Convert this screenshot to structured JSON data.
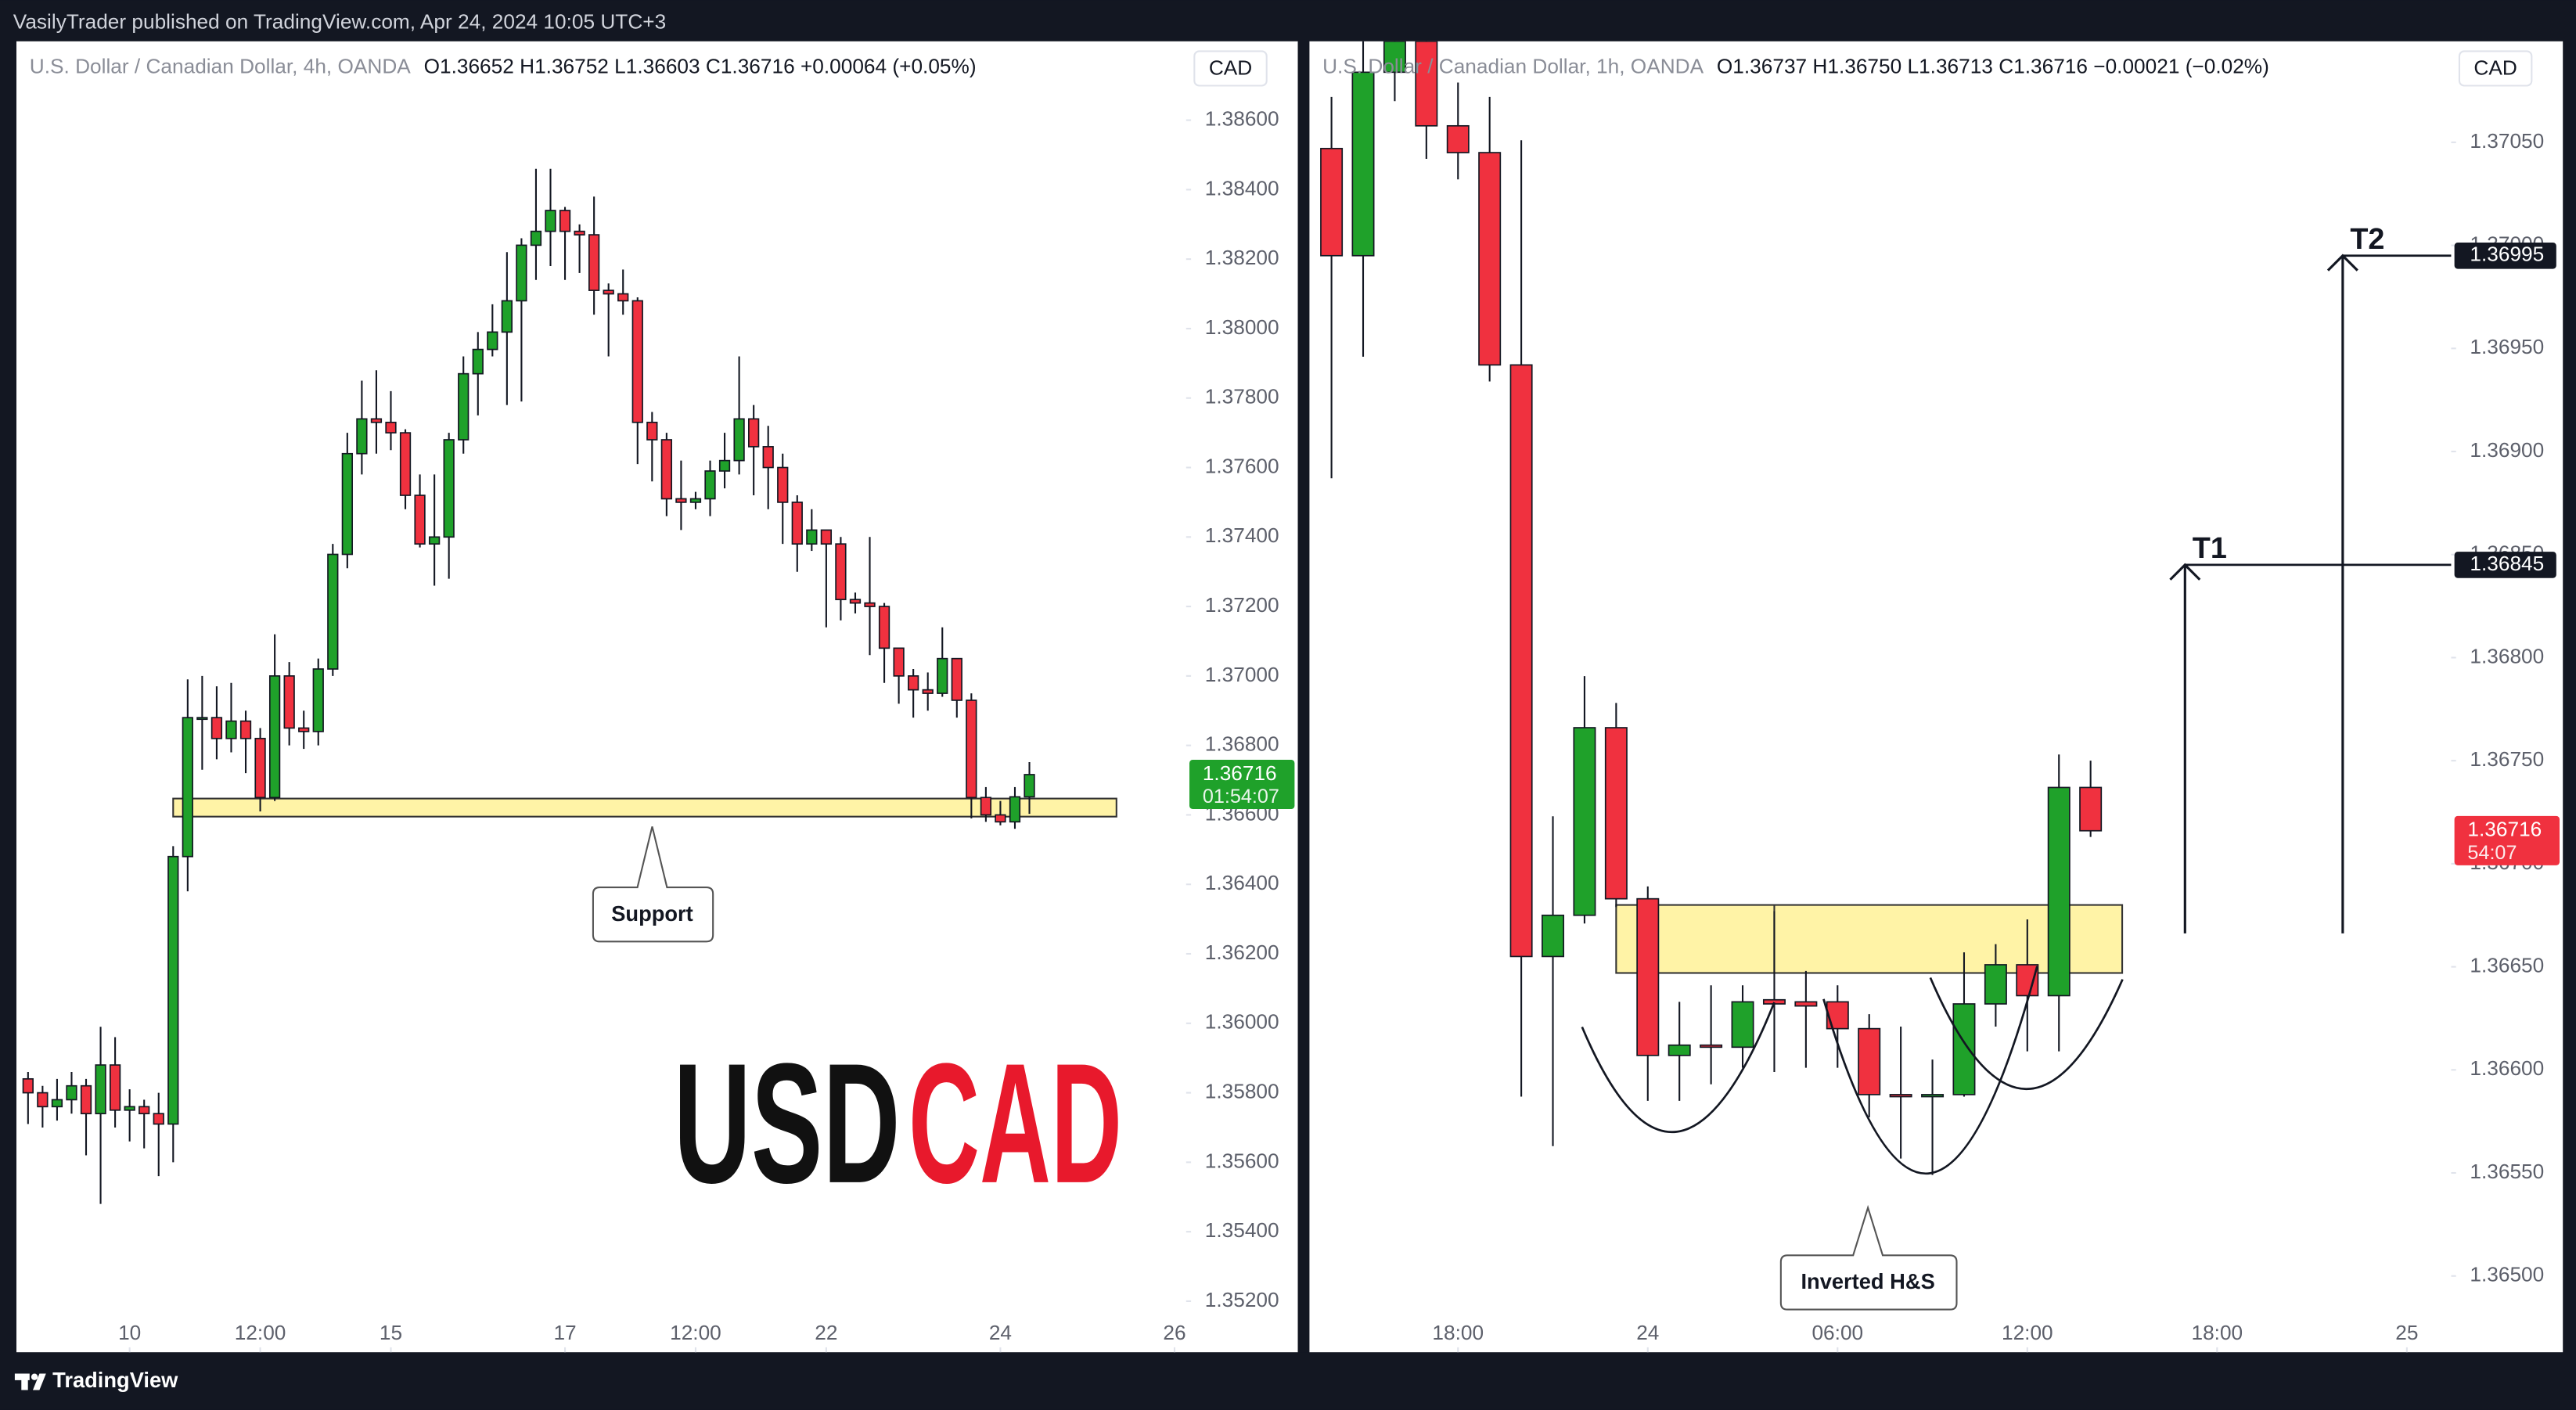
{
  "header": {
    "text": "VasilyTrader published on TradingView.com, Apr 24, 2024 10:05 UTC+3"
  },
  "footer": {
    "text": "TradingView"
  },
  "watermark": [
    "USD",
    "CAD"
  ],
  "chart_data": [
    {
      "type": "candlestick",
      "legend": {
        "name": "U.S. Dollar / Canadian Dollar, 4h, OANDA",
        "ohlc": "O1.36652 H1.36752 L1.36603 C1.36716 +0.00064 (+0.05%)"
      },
      "currency": "CAD",
      "up_color": "#1fa12a",
      "down_color": "#f0313f",
      "grid": false,
      "open": [
        1.3584,
        1.358,
        1.3576,
        1.3578,
        1.3582,
        1.3574,
        1.3588,
        1.3575,
        1.3576,
        1.3574,
        1.3571,
        1.3648,
        1.3688,
        1.3688,
        1.3682,
        1.3687,
        1.3682,
        1.3665,
        1.37,
        1.3685,
        1.3684,
        1.3702,
        1.3735,
        1.3764,
        1.3774,
        1.3773,
        1.377,
        1.3752,
        1.3738,
        1.374,
        1.3768,
        1.3787,
        1.3794,
        1.3799,
        1.3808,
        1.3824,
        1.3828,
        1.3834,
        1.3828,
        1.3827,
        1.3811,
        1.381,
        1.3808,
        1.3773,
        1.3768,
        1.3751,
        1.375,
        1.3751,
        1.3759,
        1.3762,
        1.3774,
        1.3766,
        1.376,
        1.375,
        1.3738,
        1.3742,
        1.3738,
        1.3722,
        1.3721,
        1.372,
        1.3708,
        1.37,
        1.3696,
        1.3695,
        1.3705,
        1.3693,
        1.3665,
        1.366,
        1.3658,
        1.36652
      ],
      "high": [
        1.3586,
        1.3582,
        1.3584,
        1.3586,
        1.3584,
        1.3599,
        1.3596,
        1.3581,
        1.3578,
        1.358,
        1.3651,
        1.3699,
        1.37,
        1.3697,
        1.3698,
        1.369,
        1.3685,
        1.3712,
        1.3704,
        1.369,
        1.3705,
        1.3738,
        1.377,
        1.3785,
        1.3788,
        1.3782,
        1.3771,
        1.3758,
        1.3758,
        1.377,
        1.3792,
        1.3799,
        1.3807,
        1.3822,
        1.3826,
        1.3846,
        1.3846,
        1.3835,
        1.383,
        1.3838,
        1.3813,
        1.3817,
        1.3809,
        1.3776,
        1.377,
        1.3762,
        1.3753,
        1.3762,
        1.377,
        1.3792,
        1.3778,
        1.3772,
        1.3764,
        1.3752,
        1.3748,
        1.3742,
        1.374,
        1.3724,
        1.374,
        1.3721,
        1.3708,
        1.3702,
        1.3701,
        1.3714,
        1.3705,
        1.3695,
        1.3668,
        1.3664,
        1.3668,
        1.36752
      ],
      "low": [
        1.3571,
        1.357,
        1.3572,
        1.3574,
        1.3562,
        1.3548,
        1.357,
        1.3566,
        1.3564,
        1.3556,
        1.356,
        1.3638,
        1.3673,
        1.3676,
        1.3678,
        1.3672,
        1.3661,
        1.3664,
        1.368,
        1.3679,
        1.368,
        1.37,
        1.3731,
        1.3758,
        1.3764,
        1.3765,
        1.3748,
        1.3737,
        1.3726,
        1.3728,
        1.3764,
        1.3775,
        1.3792,
        1.3778,
        1.3779,
        1.3814,
        1.3818,
        1.3814,
        1.3816,
        1.3804,
        1.3792,
        1.3804,
        1.3761,
        1.3756,
        1.3746,
        1.3742,
        1.3748,
        1.3746,
        1.3754,
        1.3758,
        1.3752,
        1.3748,
        1.3738,
        1.373,
        1.3736,
        1.3714,
        1.3716,
        1.3718,
        1.3706,
        1.3698,
        1.3692,
        1.3688,
        1.369,
        1.3694,
        1.3688,
        1.3659,
        1.3658,
        1.3657,
        1.3656,
        1.36603
      ],
      "close": [
        1.358,
        1.3576,
        1.3578,
        1.3582,
        1.3574,
        1.3588,
        1.3575,
        1.3576,
        1.3574,
        1.3571,
        1.3648,
        1.3688,
        1.3688,
        1.3682,
        1.3687,
        1.3682,
        1.3665,
        1.37,
        1.3685,
        1.3684,
        1.3702,
        1.3735,
        1.3764,
        1.3774,
        1.3773,
        1.377,
        1.3752,
        1.3738,
        1.374,
        1.3768,
        1.3787,
        1.3794,
        1.3799,
        1.3808,
        1.3824,
        1.3828,
        1.3834,
        1.3828,
        1.3827,
        1.3811,
        1.381,
        1.3808,
        1.3773,
        1.3768,
        1.3751,
        1.375,
        1.3751,
        1.3759,
        1.3762,
        1.3774,
        1.3766,
        1.376,
        1.375,
        1.3738,
        1.3742,
        1.3738,
        1.3722,
        1.3721,
        1.372,
        1.3708,
        1.37,
        1.3696,
        1.3695,
        1.3705,
        1.3693,
        1.3665,
        1.366,
        1.3658,
        1.36652,
        1.36716
      ],
      "xlim": [
        -0.8,
        79.8
      ],
      "xticks": [
        {
          "value": 7,
          "label": "10"
        },
        {
          "value": 16,
          "label": "12:00"
        },
        {
          "value": 25,
          "label": "15"
        },
        {
          "value": 37,
          "label": "17"
        },
        {
          "value": 46,
          "label": "12:00"
        },
        {
          "value": 55,
          "label": "22"
        },
        {
          "value": 67,
          "label": "24"
        },
        {
          "value": 79,
          "label": "26"
        }
      ],
      "ylim": [
        1.35053,
        1.38827
      ],
      "yticks": [
        {
          "value": 1.352,
          "label": "1.35200"
        },
        {
          "value": 1.354,
          "label": "1.35400"
        },
        {
          "value": 1.356,
          "label": "1.35600"
        },
        {
          "value": 1.358,
          "label": "1.35800"
        },
        {
          "value": 1.36,
          "label": "1.36000"
        },
        {
          "value": 1.362,
          "label": "1.36200"
        },
        {
          "value": 1.364,
          "label": "1.36400"
        },
        {
          "value": 1.366,
          "label": "1.36600"
        },
        {
          "value": 1.368,
          "label": "1.36800"
        },
        {
          "value": 1.37,
          "label": "1.37000"
        },
        {
          "value": 1.372,
          "label": "1.37200"
        },
        {
          "value": 1.374,
          "label": "1.37400"
        },
        {
          "value": 1.376,
          "label": "1.37600"
        },
        {
          "value": 1.378,
          "label": "1.37800"
        },
        {
          "value": 1.38,
          "label": "1.38000"
        },
        {
          "value": 1.382,
          "label": "1.38200"
        },
        {
          "value": 1.384,
          "label": "1.38400"
        },
        {
          "value": 1.386,
          "label": "1.38600"
        }
      ],
      "zone": {
        "top": 1.36647,
        "bottom": 1.36595
      },
      "callout": "Support",
      "last": {
        "value": 1.36716,
        "countdown": "01:54:07"
      }
    },
    {
      "type": "candlestick",
      "legend": {
        "name": "U.S. Dollar / Canadian Dollar, 1h, OANDA",
        "ohlc": "O1.36737 H1.36750 L1.36713 C1.36716 −0.00021 (−0.02%)"
      },
      "currency": "CAD",
      "up_color": "#1fa12a",
      "down_color": "#f0313f",
      "grid": false,
      "open": [
        1.37047,
        1.36995,
        1.37084,
        1.37099,
        1.37058,
        1.37045,
        1.36942,
        1.36655,
        1.36675,
        1.36766,
        1.36683,
        1.36607,
        1.36612,
        1.36611,
        1.36634,
        1.36633,
        1.36633,
        1.3662,
        1.36588,
        1.36587,
        1.36588,
        1.36632,
        1.36651,
        1.36636,
        1.36737
      ],
      "high": [
        1.37072,
        1.37103,
        1.3712,
        1.3711,
        1.37079,
        1.37072,
        1.37051,
        1.36723,
        1.36791,
        1.36778,
        1.36689,
        1.36633,
        1.36641,
        1.36641,
        1.36677,
        1.36648,
        1.36641,
        1.36627,
        1.36621,
        1.36605,
        1.36657,
        1.36661,
        1.36673,
        1.36753,
        1.3675
      ],
      "low": [
        1.36887,
        1.36946,
        1.3707,
        1.37042,
        1.37032,
        1.36934,
        1.36587,
        1.36563,
        1.36671,
        1.36679,
        1.36585,
        1.36585,
        1.36593,
        1.36601,
        1.36599,
        1.36601,
        1.36601,
        1.36577,
        1.36557,
        1.36549,
        1.36587,
        1.36621,
        1.36609,
        1.36609,
        1.36713
      ],
      "close": [
        1.36995,
        1.37084,
        1.37099,
        1.37058,
        1.37045,
        1.36942,
        1.36655,
        1.36675,
        1.36766,
        1.36683,
        1.36607,
        1.36612,
        1.36611,
        1.36633,
        1.36632,
        1.36631,
        1.3662,
        1.36588,
        1.36587,
        1.36588,
        1.36632,
        1.36651,
        1.36636,
        1.36737,
        1.36716
      ],
      "xlim": [
        -0.7,
        35.4
      ],
      "xticks": [
        {
          "value": 4,
          "label": "18:00"
        },
        {
          "value": 10,
          "label": "24"
        },
        {
          "value": 16,
          "label": "06:00"
        },
        {
          "value": 22,
          "label": "12:00"
        },
        {
          "value": 28,
          "label": "18:00"
        },
        {
          "value": 34,
          "label": "25"
        }
      ],
      "ylim": [
        1.36463,
        1.37099
      ],
      "yticks": [
        {
          "value": 1.365,
          "label": "1.36500"
        },
        {
          "value": 1.3655,
          "label": "1.36550"
        },
        {
          "value": 1.366,
          "label": "1.36600"
        },
        {
          "value": 1.3665,
          "label": "1.36650"
        },
        {
          "value": 1.367,
          "label": "1.36700"
        },
        {
          "value": 1.3675,
          "label": "1.36750"
        },
        {
          "value": 1.368,
          "label": "1.36800"
        },
        {
          "value": 1.3685,
          "label": "1.36850"
        },
        {
          "value": 1.369,
          "label": "1.36900"
        },
        {
          "value": 1.3695,
          "label": "1.36950"
        },
        {
          "value": 1.37,
          "label": "1.37000"
        },
        {
          "value": 1.3705,
          "label": "1.37050"
        }
      ],
      "zone": {
        "top": 1.3668,
        "bottom": 1.36647
      },
      "callout": "Inverted H&S",
      "targets": [
        {
          "label": "T1",
          "value": 1.36845
        },
        {
          "label": "T2",
          "value": 1.36995
        }
      ],
      "last": {
        "value": 1.36716,
        "countdown": "54:07"
      }
    }
  ]
}
